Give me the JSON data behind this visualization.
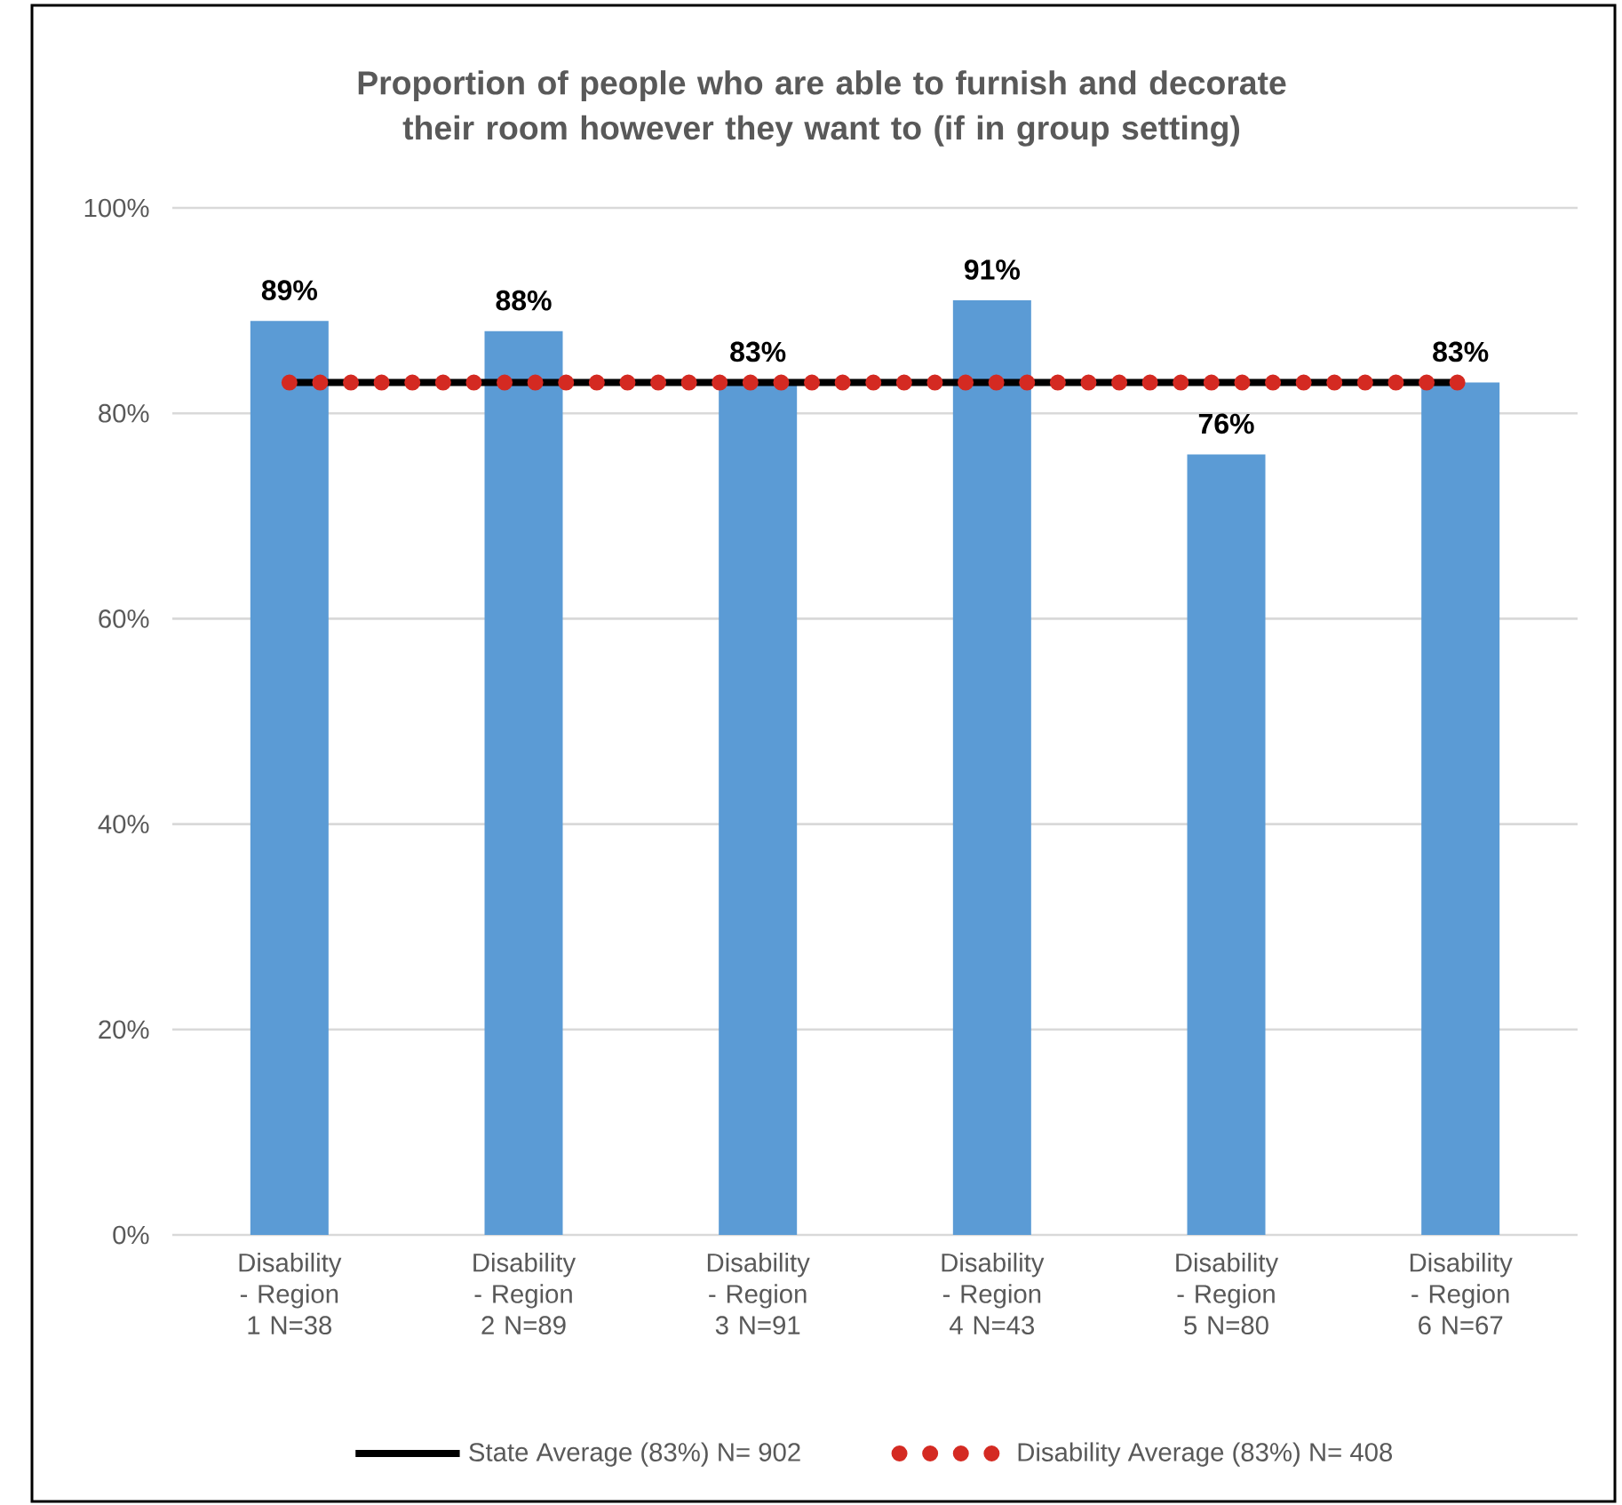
{
  "chart_data": {
    "type": "bar",
    "title": "Proportion of people who are able to furnish and decorate their room however they want to (if in group setting)",
    "categories": [
      "Disability - Region 1 N=38",
      "Disability - Region 2 N=89",
      "Disability - Region 3 N=91",
      "Disability - Region 4 N=43",
      "Disability - Region 5 N=80",
      "Disability - Region 6 N=67"
    ],
    "series": [
      {
        "color": "#5b9bd5",
        "values": [
          89,
          88,
          83,
          91,
          76,
          83
        ],
        "value_labels": [
          "89%",
          "88%",
          "83%",
          "91%",
          "76%",
          "83%"
        ]
      },
      {
        "type": "line",
        "name": "State Average (83%) N= 902",
        "color": "#000000",
        "line_style": "solid",
        "values": [
          83,
          83,
          83,
          83,
          83,
          83
        ]
      },
      {
        "type": "line",
        "name": "Disability Average (83%) N= 408",
        "color": "#d42a22",
        "line_style": "dotted",
        "values": [
          83,
          83,
          83,
          83,
          83,
          83
        ]
      }
    ],
    "ylim": [
      0,
      100
    ],
    "yticks": [
      {
        "value": 0,
        "label": "0%"
      },
      {
        "value": 20,
        "label": "20%"
      },
      {
        "value": 40,
        "label": "40%"
      },
      {
        "value": 60,
        "label": "60%"
      },
      {
        "value": 80,
        "label": "80%"
      },
      {
        "value": 100,
        "label": "100%"
      }
    ],
    "grid": "y",
    "legend": "bottom"
  }
}
